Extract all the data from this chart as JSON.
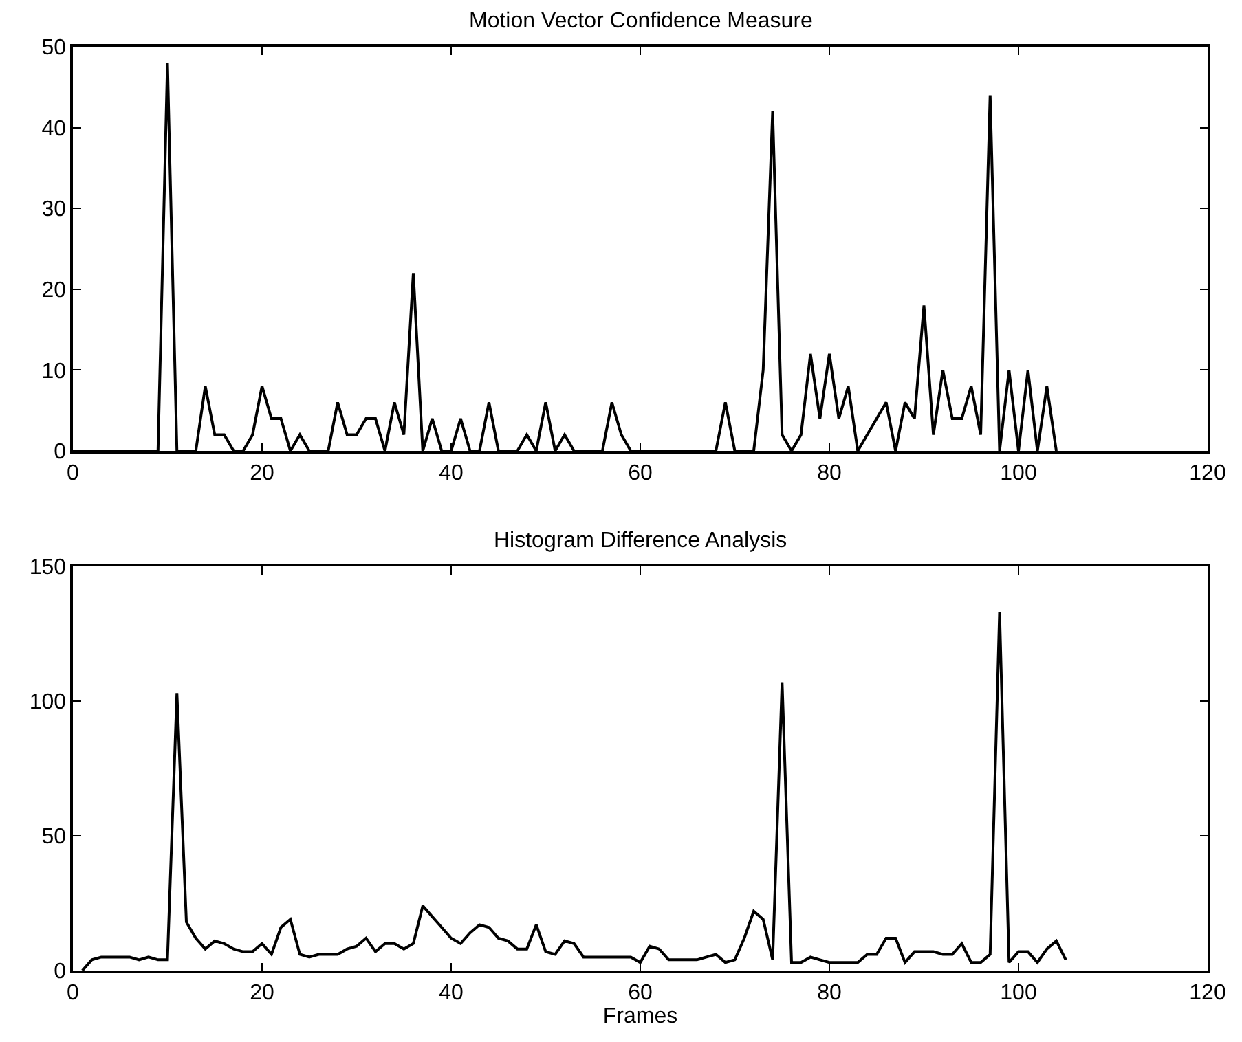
{
  "chart_data": [
    {
      "type": "line",
      "title": "Motion Vector Confidence Measure",
      "x": [
        0,
        1,
        2,
        3,
        4,
        5,
        6,
        7,
        8,
        9,
        10,
        11,
        12,
        13,
        14,
        15,
        16,
        17,
        18,
        19,
        20,
        21,
        22,
        23,
        24,
        25,
        26,
        27,
        28,
        29,
        30,
        31,
        32,
        33,
        34,
        35,
        36,
        37,
        38,
        39,
        40,
        41,
        42,
        43,
        44,
        45,
        46,
        47,
        48,
        49,
        50,
        51,
        52,
        53,
        54,
        55,
        56,
        57,
        58,
        59,
        60,
        61,
        62,
        63,
        64,
        65,
        66,
        67,
        68,
        69,
        70,
        71,
        72,
        73,
        74,
        75,
        76,
        77,
        78,
        79,
        80,
        81,
        82,
        83,
        84,
        85,
        86,
        87,
        88,
        89,
        90,
        91,
        92,
        93,
        94,
        95,
        96,
        97,
        98,
        99,
        100,
        101,
        102,
        103,
        104
      ],
      "series": [
        {
          "color": "#000000",
          "values": [
            0,
            0,
            0,
            0,
            0,
            0,
            0,
            0,
            0,
            0,
            48,
            0,
            0,
            0,
            8,
            2,
            2,
            0,
            0,
            2,
            8,
            4,
            4,
            0,
            2,
            0,
            0,
            0,
            6,
            2,
            2,
            4,
            4,
            0,
            6,
            2,
            22,
            0,
            4,
            0,
            0,
            4,
            0,
            0,
            6,
            0,
            0,
            0,
            2,
            0,
            6,
            0,
            2,
            0,
            0,
            0,
            0,
            6,
            2,
            0,
            0,
            0,
            0,
            0,
            0,
            0,
            0,
            0,
            0,
            6,
            0,
            0,
            0,
            10,
            42,
            2,
            0,
            2,
            12,
            4,
            12,
            4,
            8,
            0,
            2,
            4,
            6,
            0,
            6,
            4,
            18,
            2,
            10,
            4,
            4,
            8,
            2,
            44,
            0,
            10,
            0,
            10,
            0,
            8,
            0
          ]
        }
      ],
      "xlim": [
        0,
        120
      ],
      "xticks": [
        0,
        20,
        40,
        60,
        80,
        100,
        120
      ],
      "ylim": [
        0,
        50
      ],
      "yticks": [
        0,
        10,
        20,
        30,
        40,
        50
      ],
      "marker": "none",
      "line_style": "solid"
    },
    {
      "type": "line",
      "title": "Histogram Difference Analysis",
      "xlabel": "Frames",
      "x": [
        1,
        2,
        3,
        4,
        5,
        6,
        7,
        8,
        9,
        10,
        11,
        12,
        13,
        14,
        15,
        16,
        17,
        18,
        19,
        20,
        21,
        22,
        23,
        24,
        25,
        26,
        27,
        28,
        29,
        30,
        31,
        32,
        33,
        34,
        35,
        36,
        37,
        38,
        39,
        40,
        41,
        42,
        43,
        44,
        45,
        46,
        47,
        48,
        49,
        50,
        51,
        52,
        53,
        54,
        55,
        56,
        57,
        58,
        59,
        60,
        61,
        62,
        63,
        64,
        65,
        66,
        67,
        68,
        69,
        70,
        71,
        72,
        73,
        74,
        75,
        76,
        77,
        78,
        79,
        80,
        81,
        82,
        83,
        84,
        85,
        86,
        87,
        88,
        89,
        90,
        91,
        92,
        93,
        94,
        95,
        96,
        97,
        98,
        99,
        100,
        101,
        102,
        103,
        104,
        105
      ],
      "series": [
        {
          "color": "#000000",
          "values": [
            0,
            4,
            5,
            5,
            5,
            5,
            4,
            5,
            4,
            4,
            103,
            18,
            12,
            8,
            11,
            10,
            8,
            7,
            7,
            10,
            6,
            16,
            19,
            6,
            5,
            6,
            6,
            6,
            8,
            9,
            12,
            7,
            10,
            10,
            8,
            10,
            24,
            20,
            16,
            12,
            10,
            14,
            17,
            16,
            12,
            11,
            8,
            8,
            17,
            7,
            6,
            11,
            10,
            5,
            5,
            5,
            5,
            5,
            5,
            3,
            9,
            8,
            4,
            4,
            4,
            4,
            5,
            6,
            3,
            4,
            12,
            22,
            19,
            4,
            107,
            3,
            3,
            5,
            4,
            3,
            3,
            3,
            3,
            6,
            6,
            12,
            12,
            3,
            7,
            7,
            7,
            6,
            6,
            10,
            3,
            3,
            6,
            133,
            3,
            7,
            7,
            3,
            8,
            11,
            4
          ]
        }
      ],
      "xlim": [
        0,
        120
      ],
      "xticks": [
        0,
        20,
        40,
        60,
        80,
        100,
        120
      ],
      "ylim": [
        0,
        150
      ],
      "yticks": [
        0,
        50,
        100,
        150
      ],
      "marker": "none",
      "line_style": "solid"
    }
  ]
}
